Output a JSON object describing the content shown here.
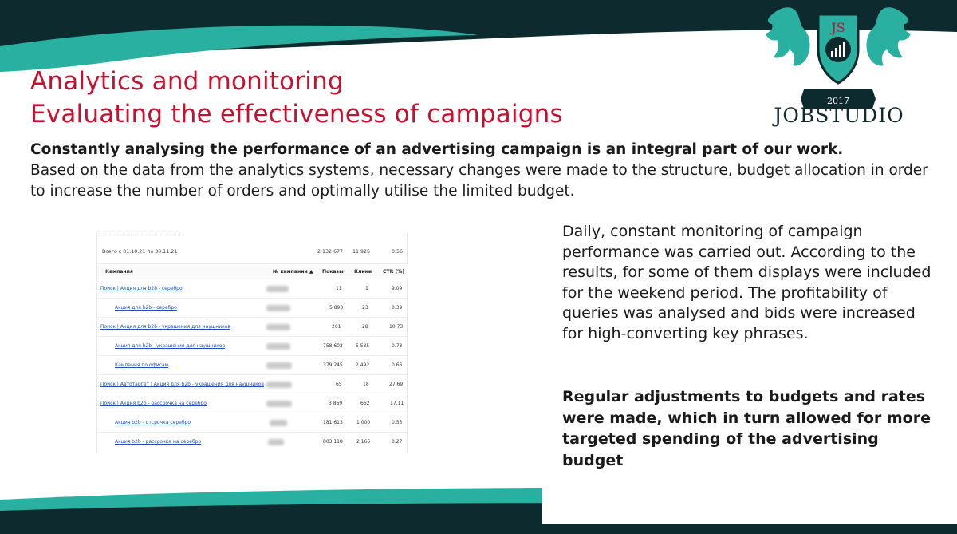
{
  "slide": {
    "title_line1": "Analytics and monitoring",
    "title_line2": "Evaluating the effectiveness of campaigns",
    "intro_bold": "Constantly analysing the performance of an advertising campaign is an integral part of our work.",
    "intro_body": "Based on the data from the analytics systems, necessary changes were made to the structure, budget allocation in order to increase the number of orders and optimally utilise the limited budget.",
    "paragraph1": "Daily, constant monitoring of campaign performance was carried out. According to the results, for some of them displays were included for the weekend period. The profitability of queries was analysed and bids were increased for high-converting key phrases.",
    "paragraph2": "Regular adjustments to budgets and rates were made, which in turn allowed for more targeted spending of the advertising budget"
  },
  "logo": {
    "monogram": "JS",
    "year": "2017",
    "name": "JOBSTUDIO"
  },
  "colors": {
    "title_red": "#c8102e",
    "dark_band": "#0d2a2e",
    "teal": "#2ab0a0"
  },
  "report": {
    "total_label": "Всего с 01.10.21 по 30.11.21",
    "total_impressions": "2 132 677",
    "total_clicks": "11 925",
    "total_ctr": "0.56",
    "headers": {
      "campaign": "Кампания",
      "campaign_no": "№ кампании ▲",
      "impressions": "Показы",
      "clicks": "Клики",
      "ctr": "CTR (%)"
    },
    "rows": [
      {
        "name": "Поиск | Акция для b2b - серебро",
        "impressions": "11",
        "clicks": "1",
        "ctr": "9.09"
      },
      {
        "name": "Акция для b2b - серебро",
        "impressions": "5 893",
        "clicks": "23",
        "ctr": "0.39"
      },
      {
        "name": "Поиск | Акция для b2b - украшения для наушников",
        "impressions": "261",
        "clicks": "28",
        "ctr": "10.73"
      },
      {
        "name": "Акция для b2b - украшения для наушников",
        "impressions": "758 602",
        "clicks": "5 535",
        "ctr": "0.73"
      },
      {
        "name": "Кампания по офисам",
        "impressions": "379 245",
        "clicks": "2 492",
        "ctr": "0.66"
      },
      {
        "name": "Поиск | Автотаргет | Акция для b2b - украшения для наушников",
        "impressions": "65",
        "clicks": "18",
        "ctr": "27.69"
      },
      {
        "name": "Поиск | Акция b2b - рассрочка на серебро",
        "impressions": "3 869",
        "clicks": "662",
        "ctr": "17.11"
      },
      {
        "name": "Акция b2b - отсрочка серебро",
        "impressions": "181 613",
        "clicks": "1 000",
        "ctr": "0.55"
      },
      {
        "name": "Акция b2b - рассрочка на серебро",
        "impressions": "803 118",
        "clicks": "2 166",
        "ctr": "0.27"
      }
    ]
  }
}
